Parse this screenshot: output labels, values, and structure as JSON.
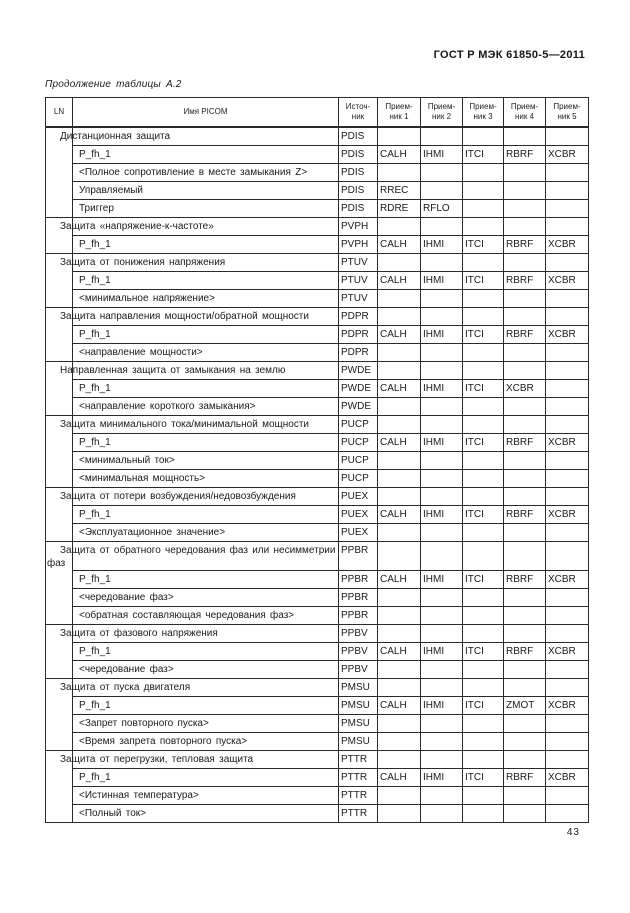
{
  "page": {
    "doc_header": "ГОСТ Р МЭК 61850-5—2011",
    "table_caption": "Продолжение таблицы А.2",
    "page_number": "43"
  },
  "table": {
    "columns": [
      "LN",
      "Имя PICOM",
      "Источ-\nник",
      "Прием-\nник 1",
      "Прием-\nник 2",
      "Прием-\nник 3",
      "Прием-\nник 4",
      "Прием-\nник 5"
    ],
    "groups": [
      {
        "name": "Дистанционная защита",
        "source": "PDIS",
        "rows": [
          {
            "name": "P_fh_1",
            "source": "PDIS",
            "receivers": [
              "CALH",
              "IHMI",
              "ITCI",
              "RBRF",
              "XCBR"
            ]
          },
          {
            "name": "<Полное сопротивление в месте замыкания Z>",
            "source": "PDIS",
            "receivers": [
              "",
              "",
              "",
              "",
              ""
            ]
          },
          {
            "name": "Управляемый",
            "source": "PDIS",
            "receivers": [
              "RREC",
              "",
              "",
              "",
              ""
            ]
          },
          {
            "name": "Триггер",
            "source": "PDIS",
            "receivers": [
              "RDRE",
              "RFLO",
              "",
              "",
              ""
            ]
          }
        ]
      },
      {
        "name": "Защита «напряжение-к-частоте»",
        "source": "PVPH",
        "rows": [
          {
            "name": "P_fh_1",
            "source": "PVPH",
            "receivers": [
              "CALH",
              "IHMI",
              "ITCI",
              "RBRF",
              "XCBR"
            ]
          }
        ]
      },
      {
        "name": "Защита от понижения напряжения",
        "source": "PTUV",
        "rows": [
          {
            "name": "P_fh_1",
            "source": "PTUV",
            "receivers": [
              "CALH",
              "IHMI",
              "ITCI",
              "RBRF",
              "XCBR"
            ]
          },
          {
            "name": "<минимальное напряжение>",
            "source": "PTUV",
            "receivers": [
              "",
              "",
              "",
              "",
              ""
            ]
          }
        ]
      },
      {
        "name": "Защита направления мощности/обратной мощности",
        "source": "PDPR",
        "rows": [
          {
            "name": "P_fh_1",
            "source": "PDPR",
            "receivers": [
              "CALH",
              "IHMI",
              "ITCI",
              "RBRF",
              "XCBR"
            ]
          },
          {
            "name": "<направление мощности>",
            "source": "PDPR",
            "receivers": [
              "",
              "",
              "",
              "",
              ""
            ]
          }
        ]
      },
      {
        "name": "Направленная защита от замыкания на землю",
        "source": "PWDE",
        "rows": [
          {
            "name": "P_fh_1",
            "source": "PWDE",
            "receivers": [
              "CALH",
              "IHMI",
              "ITCI",
              "XCBR",
              ""
            ]
          },
          {
            "name": "<направление короткого замыкания>",
            "source": "PWDE",
            "receivers": [
              "",
              "",
              "",
              "",
              ""
            ]
          }
        ]
      },
      {
        "name": "Защита минимального тока/минимальной мощности",
        "source": "PUCP",
        "rows": [
          {
            "name": "P_fh_1",
            "source": "PUCP",
            "receivers": [
              "CALH",
              "IHMI",
              "ITCI",
              "RBRF",
              "XCBR"
            ]
          },
          {
            "name": "<минимальный ток>",
            "source": "PUCP",
            "receivers": [
              "",
              "",
              "",
              "",
              ""
            ]
          },
          {
            "name": "<минимальная мощность>",
            "source": "PUCP",
            "receivers": [
              "",
              "",
              "",
              "",
              ""
            ]
          }
        ]
      },
      {
        "name": "Защита от потери возбуждения/недовозбуждения",
        "source": "PUEX",
        "rows": [
          {
            "name": "P_fh_1",
            "source": "PUEX",
            "receivers": [
              "CALH",
              "IHMI",
              "ITCI",
              "RBRF",
              "XCBR"
            ]
          },
          {
            "name": "<Эксплуатационное значение>",
            "source": "PUEX",
            "receivers": [
              "",
              "",
              "",
              "",
              ""
            ]
          }
        ]
      },
      {
        "name": "Защита от обратного чередования фаз или несимметрии\nфаз",
        "source": "PPBR",
        "rows": [
          {
            "name": "P_fh_1",
            "source": "PPBR",
            "receivers": [
              "CALH",
              "IHMI",
              "ITCI",
              "RBRF",
              "XCBR"
            ]
          },
          {
            "name": "<чередование фаз>",
            "source": "PPBR",
            "receivers": [
              "",
              "",
              "",
              "",
              ""
            ]
          },
          {
            "name": "<обратная составляющая чередования фаз>",
            "source": "PPBR",
            "receivers": [
              "",
              "",
              "",
              "",
              ""
            ]
          }
        ]
      },
      {
        "name": "Защита от фазового напряжения",
        "source": "PPBV",
        "rows": [
          {
            "name": "P_fh_1",
            "source": "PPBV",
            "receivers": [
              "CALH",
              "IHMI",
              "ITCI",
              "RBRF",
              "XCBR"
            ]
          },
          {
            "name": "<чередование фаз>",
            "source": "PPBV",
            "receivers": [
              "",
              "",
              "",
              "",
              ""
            ]
          }
        ]
      },
      {
        "name": "Защита от пуска двигателя",
        "source": "PMSU",
        "rows": [
          {
            "name": "P_fh_1",
            "source": "PMSU",
            "receivers": [
              "CALH",
              "IHMI",
              "ITCI",
              "ZMOT",
              "XCBR"
            ]
          },
          {
            "name": "<Запрет повторного пуска>",
            "source": "PMSU",
            "receivers": [
              "",
              "",
              "",
              "",
              ""
            ]
          },
          {
            "name": "<Время запрета повторного пуска>",
            "source": "PMSU",
            "receivers": [
              "",
              "",
              "",
              "",
              ""
            ]
          }
        ]
      },
      {
        "name": "Защита от перегрузки, тепловая защита",
        "source": "PTTR",
        "rows": [
          {
            "name": "P_fh_1",
            "source": "PTTR",
            "receivers": [
              "CALH",
              "IHMI",
              "ITCI",
              "RBRF",
              "XCBR"
            ]
          },
          {
            "name": "<Истинная температура>",
            "source": "PTTR",
            "receivers": [
              "",
              "",
              "",
              "",
              ""
            ]
          },
          {
            "name": "<Полный ток>",
            "source": "PTTR",
            "receivers": [
              "",
              "",
              "",
              "",
              ""
            ]
          }
        ]
      }
    ]
  }
}
